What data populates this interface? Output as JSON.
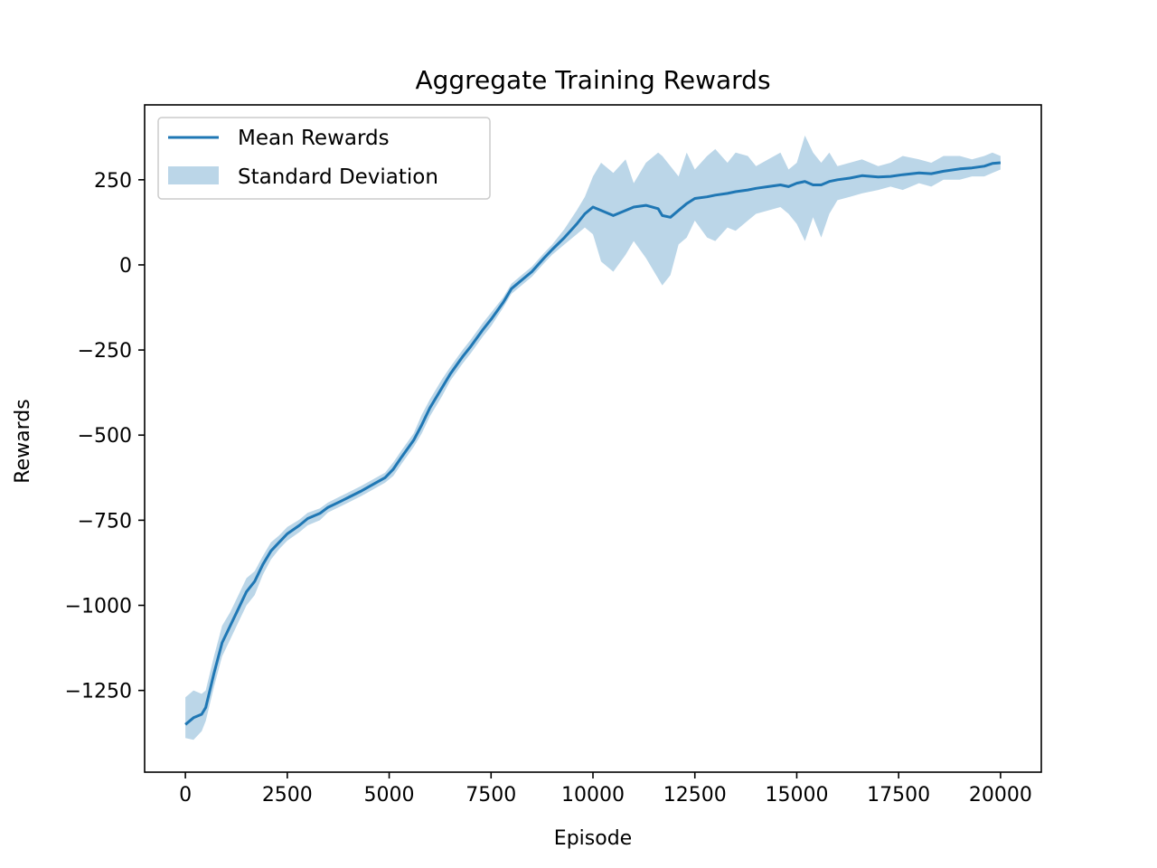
{
  "chart_data": {
    "type": "line",
    "title": "Aggregate Training Rewards",
    "xlabel": "Episode",
    "ylabel": "Rewards",
    "xlim": [
      -1000,
      21000
    ],
    "ylim": [
      -1490,
      470
    ],
    "xticks": [
      0,
      2500,
      5000,
      7500,
      10000,
      12500,
      15000,
      17500,
      20000
    ],
    "xtick_labels": [
      "0",
      "2500",
      "5000",
      "7500",
      "10000",
      "12500",
      "15000",
      "17500",
      "20000"
    ],
    "yticks": [
      250,
      0,
      -250,
      -500,
      -750,
      -1000,
      -1250
    ],
    "ytick_labels": [
      "250",
      "0",
      "−250",
      "−500",
      "−750",
      "−1000",
      "−1250"
    ],
    "grid": false,
    "legend_position": "top-left",
    "colors": {
      "line": "#1f77b4",
      "band": "#1f77b4",
      "band_opacity": 0.3
    },
    "series": [
      {
        "name": "Mean Rewards",
        "style": "line",
        "x": [
          0,
          200,
          400,
          500,
          700,
          900,
          1100,
          1300,
          1500,
          1700,
          1900,
          2100,
          2300,
          2500,
          2800,
          3000,
          3300,
          3500,
          3800,
          4000,
          4300,
          4600,
          4900,
          5100,
          5300,
          5600,
          5800,
          6000,
          6300,
          6500,
          6800,
          7000,
          7300,
          7500,
          7800,
          8000,
          8300,
          8500,
          8800,
          9000,
          9300,
          9600,
          9800,
          10000,
          10200,
          10500,
          10800,
          11000,
          11300,
          11600,
          11700,
          11900,
          12100,
          12300,
          12500,
          12800,
          13000,
          13300,
          13500,
          13800,
          14000,
          14300,
          14600,
          14800,
          15000,
          15200,
          15400,
          15600,
          15800,
          16000,
          16300,
          16600,
          17000,
          17300,
          17600,
          18000,
          18300,
          18600,
          19000,
          19300,
          19600,
          19800,
          20000
        ],
        "y": [
          -1350,
          -1330,
          -1320,
          -1300,
          -1200,
          -1110,
          -1060,
          -1010,
          -960,
          -930,
          -880,
          -840,
          -815,
          -790,
          -765,
          -745,
          -730,
          -712,
          -695,
          -683,
          -665,
          -645,
          -625,
          -600,
          -565,
          -515,
          -470,
          -420,
          -360,
          -320,
          -270,
          -240,
          -190,
          -160,
          -110,
          -70,
          -40,
          -20,
          20,
          45,
          80,
          120,
          150,
          170,
          160,
          145,
          160,
          170,
          175,
          165,
          145,
          140,
          160,
          180,
          195,
          200,
          205,
          210,
          215,
          220,
          225,
          230,
          235,
          230,
          240,
          245,
          235,
          235,
          245,
          250,
          255,
          262,
          258,
          260,
          265,
          270,
          268,
          275,
          282,
          285,
          290,
          298,
          300
        ]
      },
      {
        "name": "Standard Deviation",
        "style": "band",
        "x": [
          0,
          200,
          400,
          500,
          700,
          900,
          1100,
          1300,
          1500,
          1700,
          1900,
          2100,
          2300,
          2500,
          2800,
          3000,
          3300,
          3500,
          3800,
          4000,
          4300,
          4600,
          4900,
          5100,
          5300,
          5600,
          5800,
          6000,
          6300,
          6500,
          6800,
          7000,
          7300,
          7500,
          7800,
          8000,
          8300,
          8500,
          8800,
          9000,
          9300,
          9600,
          9800,
          10000,
          10200,
          10500,
          10800,
          11000,
          11300,
          11600,
          11700,
          11900,
          12100,
          12300,
          12500,
          12800,
          13000,
          13300,
          13500,
          13800,
          14000,
          14300,
          14600,
          14800,
          15000,
          15200,
          15400,
          15600,
          15800,
          16000,
          16300,
          16600,
          17000,
          17300,
          17600,
          18000,
          18300,
          18600,
          19000,
          19300,
          19600,
          19800,
          20000
        ],
        "upper": [
          -1270,
          -1250,
          -1260,
          -1250,
          -1150,
          -1060,
          -1020,
          -970,
          -920,
          -900,
          -855,
          -815,
          -795,
          -770,
          -748,
          -728,
          -715,
          -698,
          -680,
          -668,
          -650,
          -630,
          -610,
          -580,
          -545,
          -495,
          -440,
          -395,
          -335,
          -300,
          -250,
          -220,
          -170,
          -140,
          -95,
          -55,
          -25,
          -5,
          35,
          60,
          105,
          160,
          200,
          260,
          300,
          270,
          310,
          240,
          300,
          330,
          320,
          290,
          260,
          330,
          280,
          320,
          340,
          300,
          330,
          320,
          290,
          310,
          330,
          280,
          300,
          380,
          330,
          300,
          330,
          290,
          300,
          310,
          290,
          300,
          320,
          310,
          300,
          320,
          320,
          310,
          320,
          330,
          320
        ],
        "lower": [
          -1390,
          -1395,
          -1370,
          -1340,
          -1240,
          -1150,
          -1100,
          -1050,
          -1000,
          -970,
          -910,
          -865,
          -835,
          -810,
          -785,
          -765,
          -750,
          -727,
          -710,
          -698,
          -680,
          -660,
          -640,
          -620,
          -585,
          -535,
          -495,
          -445,
          -385,
          -340,
          -290,
          -260,
          -210,
          -180,
          -125,
          -85,
          -55,
          -35,
          5,
          30,
          60,
          90,
          110,
          90,
          10,
          -20,
          30,
          70,
          20,
          -40,
          -60,
          -30,
          60,
          80,
          130,
          80,
          70,
          110,
          100,
          130,
          150,
          160,
          170,
          150,
          120,
          70,
          140,
          80,
          150,
          190,
          200,
          210,
          220,
          230,
          220,
          240,
          230,
          250,
          250,
          260,
          260,
          270,
          280
        ]
      }
    ]
  }
}
